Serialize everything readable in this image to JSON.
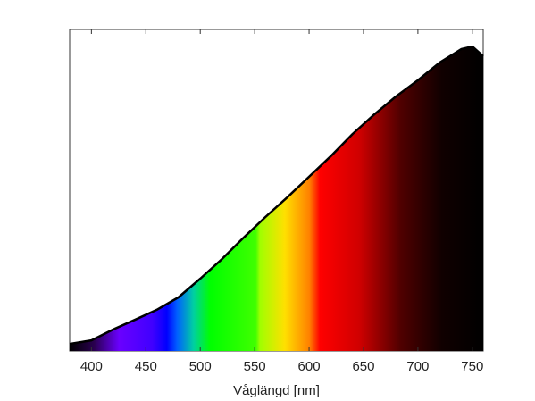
{
  "chart_data": {
    "type": "area",
    "xlabel": "Våglängd [nm]",
    "x": [
      380,
      400,
      420,
      440,
      460,
      480,
      500,
      520,
      540,
      560,
      580,
      600,
      620,
      640,
      660,
      680,
      700,
      720,
      740,
      750,
      760
    ],
    "values": [
      0.022,
      0.033,
      0.067,
      0.097,
      0.128,
      0.167,
      0.225,
      0.286,
      0.353,
      0.417,
      0.478,
      0.542,
      0.606,
      0.675,
      0.736,
      0.792,
      0.842,
      0.897,
      0.939,
      0.947,
      0.917
    ],
    "color": "#000000",
    "xlim": [
      380,
      760
    ],
    "xticks": [
      400,
      450,
      500,
      550,
      600,
      650,
      700,
      750
    ],
    "ylim": [
      0,
      1
    ]
  }
}
